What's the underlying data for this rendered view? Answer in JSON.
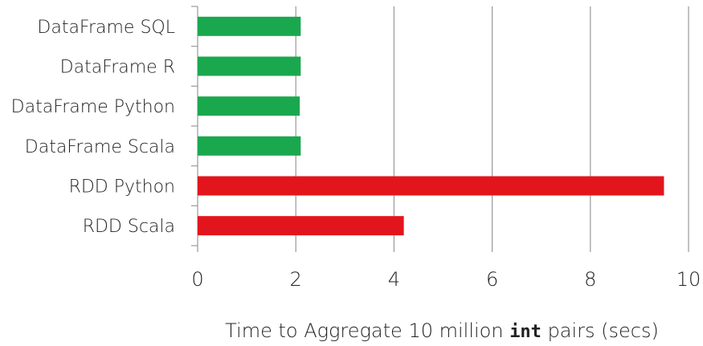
{
  "chart_data": {
    "type": "bar",
    "orientation": "horizontal",
    "categories": [
      "DataFrame SQL",
      "DataFrame R",
      "DataFrame Python",
      "DataFrame Scala",
      "RDD Python",
      "RDD Scala"
    ],
    "values": [
      2.1,
      2.1,
      2.08,
      2.1,
      9.5,
      4.2
    ],
    "bar_colors": [
      "#1aa84f",
      "#1aa84f",
      "#1aa84f",
      "#1aa84f",
      "#e3151c",
      "#e3151c"
    ],
    "xlim": [
      0,
      10
    ],
    "xticks": [
      0,
      2,
      4,
      6,
      8,
      10
    ],
    "xlabel": {
      "before": "Time to Aggregate 10 million ",
      "code": "int",
      "after": " pairs (secs)"
    },
    "grid": "vertical"
  }
}
